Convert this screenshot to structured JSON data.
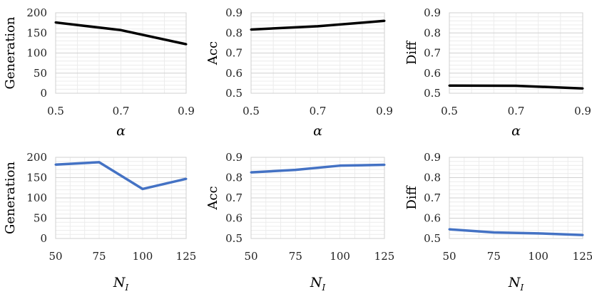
{
  "chart_data": [
    {
      "type": "line",
      "title": "",
      "xlabel": "α",
      "ylabel": "Generation",
      "x": [
        0.5,
        0.7,
        0.9
      ],
      "x_tick_labels": [
        "0.5",
        "0.7",
        "0.9"
      ],
      "xlim": [
        0.5,
        0.9
      ],
      "y_ticks": [
        0,
        50,
        100,
        150,
        200
      ],
      "y_tick_labels": [
        "0",
        "50",
        "100",
        "150",
        "200"
      ],
      "ylim": [
        0,
        200
      ],
      "series": [
        {
          "name": "Generation",
          "values": [
            176,
            157,
            122
          ],
          "color": "#000000"
        }
      ],
      "grid": true
    },
    {
      "type": "line",
      "title": "",
      "xlabel": "α",
      "ylabel": "Acc",
      "x": [
        0.5,
        0.7,
        0.9
      ],
      "x_tick_labels": [
        "0.5",
        "0.7",
        "0.9"
      ],
      "xlim": [
        0.5,
        0.9
      ],
      "y_ticks": [
        0.5,
        0.6,
        0.7,
        0.8,
        0.9
      ],
      "y_tick_labels": [
        "0.5",
        "0.6",
        "0.7",
        "0.8",
        "0.9"
      ],
      "ylim": [
        0.5,
        0.9
      ],
      "series": [
        {
          "name": "Acc",
          "values": [
            0.817,
            0.833,
            0.86
          ],
          "color": "#000000"
        }
      ],
      "grid": true
    },
    {
      "type": "line",
      "title": "",
      "xlabel": "α",
      "ylabel": "Diff",
      "x": [
        0.5,
        0.7,
        0.9
      ],
      "x_tick_labels": [
        "0.5",
        "0.7",
        "0.9"
      ],
      "xlim": [
        0.5,
        0.9
      ],
      "y_ticks": [
        0.5,
        0.6,
        0.7,
        0.8,
        0.9
      ],
      "y_tick_labels": [
        "0.5",
        "0.6",
        "0.7",
        "0.8",
        "0.9"
      ],
      "ylim": [
        0.5,
        0.9
      ],
      "series": [
        {
          "name": "Diff",
          "values": [
            0.538,
            0.537,
            0.524
          ],
          "color": "#000000"
        }
      ],
      "grid": true
    },
    {
      "type": "line",
      "title": "",
      "xlabel": "N",
      "xlabel_subscript": "I",
      "ylabel": "Generation",
      "x": [
        50,
        75,
        100,
        125
      ],
      "x_tick_labels": [
        "50",
        "75",
        "100",
        "125"
      ],
      "xlim": [
        50,
        125
      ],
      "y_ticks": [
        0,
        50,
        100,
        150,
        200
      ],
      "y_tick_labels": [
        "0",
        "50",
        "100",
        "150",
        "200"
      ],
      "ylim": [
        0,
        200
      ],
      "series": [
        {
          "name": "Generation",
          "values": [
            182,
            188,
            122,
            147
          ],
          "color": "#4472C4"
        }
      ],
      "grid": true
    },
    {
      "type": "line",
      "title": "",
      "xlabel": "N",
      "xlabel_subscript": "I",
      "ylabel": "Acc",
      "x": [
        50,
        75,
        100,
        125
      ],
      "x_tick_labels": [
        "50",
        "75",
        "100",
        "125"
      ],
      "xlim": [
        50,
        125
      ],
      "y_ticks": [
        0.5,
        0.6,
        0.7,
        0.8,
        0.9
      ],
      "y_tick_labels": [
        "0.5",
        "0.6",
        "0.7",
        "0.8",
        "0.9"
      ],
      "ylim": [
        0.5,
        0.9
      ],
      "series": [
        {
          "name": "Acc",
          "values": [
            0.826,
            0.838,
            0.859,
            0.863
          ],
          "color": "#4472C4"
        }
      ],
      "grid": true
    },
    {
      "type": "line",
      "title": "",
      "xlabel": "N",
      "xlabel_subscript": "I",
      "ylabel": "Diff",
      "x": [
        50,
        75,
        100,
        125
      ],
      "x_tick_labels": [
        "50",
        "75",
        "100",
        "125"
      ],
      "xlim": [
        50,
        125
      ],
      "y_ticks": [
        0.5,
        0.6,
        0.7,
        0.8,
        0.9
      ],
      "y_tick_labels": [
        "0.5",
        "0.6",
        "0.7",
        "0.8",
        "0.9"
      ],
      "ylim": [
        0.5,
        0.9
      ],
      "series": [
        {
          "name": "Diff",
          "values": [
            0.545,
            0.53,
            0.525,
            0.517
          ],
          "color": "#4472C4"
        }
      ],
      "grid": true
    }
  ]
}
